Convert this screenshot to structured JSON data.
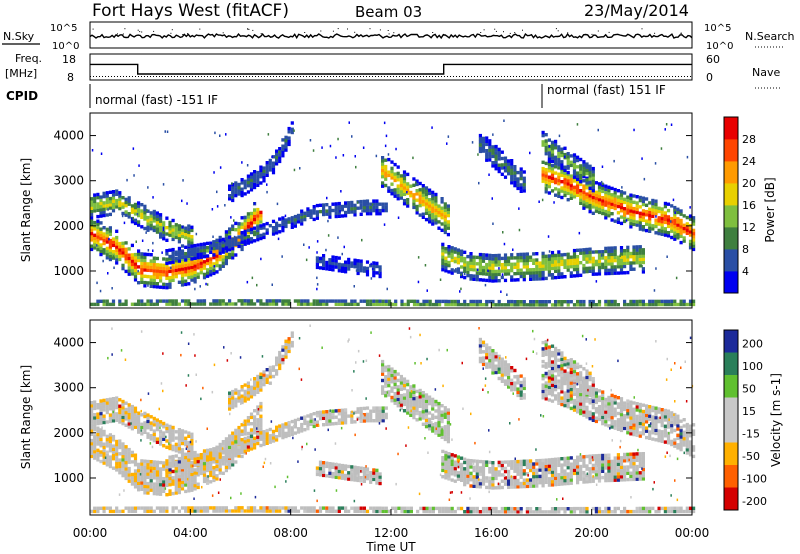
{
  "header": {
    "station": "Fort Hays West (fitACF)",
    "beam": "Beam 03",
    "date": "23/May/2014"
  },
  "noise_panel": {
    "left_label": "N.Sky",
    "left_ticks": [
      "10^5",
      "10^0"
    ],
    "right_ticks": [
      "10^5",
      "10^0"
    ],
    "right_label": "N.Search"
  },
  "freq_panel": {
    "left_label_1": "Freq.",
    "left_label_2": "[MHz]",
    "left_ticks": [
      "18",
      "8"
    ],
    "right_ticks": [
      "60",
      "0"
    ],
    "right_label": "Nave",
    "freq_steps": [
      {
        "from": 0.0,
        "to": 1.9,
        "mhz": 14
      },
      {
        "from": 1.9,
        "to": 14.1,
        "mhz": 10.3
      },
      {
        "from": 14.1,
        "to": 24.0,
        "mhz": 14
      }
    ],
    "nave_level": 8
  },
  "cpid": {
    "label": "CPID",
    "segments": [
      {
        "text": "normal (fast) -151 IF",
        "from_hour": 0
      },
      {
        "text": "normal (fast) 151 IF",
        "from_hour": 18
      }
    ]
  },
  "colors": {
    "power": [
      "#0000f0",
      "#2a4fa5",
      "#3f7f3f",
      "#7fbf3f",
      "#e8d000",
      "#ff9a00",
      "#ff4500",
      "#e80000"
    ],
    "velocity": [
      "#d40000",
      "#ff6000",
      "#ffb000",
      "#c8c8c8",
      "#c8c8c8",
      "#60c030",
      "#2a7f5a",
      "#1c2a9a"
    ],
    "gs": "#bebebe"
  },
  "chart_data": [
    {
      "type": "heatmap",
      "name": "power",
      "ylabel": "Slant Range [km]",
      "yticks": [
        "4000",
        "3000",
        "2000",
        "1000"
      ],
      "ylim": [
        180,
        4500
      ],
      "xlim": [
        0,
        24
      ],
      "colorbar": {
        "label": "Power [dB]",
        "ticks": [
          "28",
          "24",
          "20",
          "16",
          "12",
          "8",
          "4"
        ],
        "range": [
          0,
          32
        ]
      },
      "echo_bands": [
        {
          "x": [
            0.0,
            1.0,
            2.0,
            3.0,
            4.0,
            5.0,
            6.0,
            6.8
          ],
          "y": [
            1800,
            1500,
            1000,
            950,
            1050,
            1300,
            1800,
            2300
          ],
          "width": 350,
          "peak": 28
        },
        {
          "x": [
            0.0,
            1.0,
            2.0,
            3.0,
            4.0
          ],
          "y": [
            2400,
            2500,
            2200,
            1900,
            1700
          ],
          "width": 250,
          "peak": 18
        },
        {
          "x": [
            3.0,
            5.0,
            7.0,
            9.0,
            11.0,
            11.8
          ],
          "y": [
            1300,
            1500,
            1900,
            2300,
            2400,
            2400
          ],
          "width": 160,
          "peak": 8
        },
        {
          "x": [
            11.6,
            12.5,
            13.5,
            14.3
          ],
          "y": [
            3200,
            2800,
            2400,
            2100
          ],
          "width": 350,
          "peak": 22
        },
        {
          "x": [
            14.0,
            15.0,
            16.0,
            18.0,
            20.0,
            22.0
          ],
          "y": [
            1300,
            1100,
            1050,
            1100,
            1200,
            1250
          ],
          "width": 300,
          "peak": 18
        },
        {
          "x": [
            18.0,
            19.0,
            20.0,
            21.5,
            23.0,
            24.0
          ],
          "y": [
            3100,
            2900,
            2600,
            2300,
            2100,
            1800
          ],
          "width": 350,
          "peak": 28
        },
        {
          "x": [
            15.5,
            16.5,
            17.3
          ],
          "y": [
            3800,
            3300,
            2900
          ],
          "width": 250,
          "peak": 10
        },
        {
          "x": [
            18.0,
            19.0,
            20.0
          ],
          "y": [
            3800,
            3400,
            3000
          ],
          "width": 250,
          "peak": 14
        },
        {
          "x": [
            5.5,
            6.2,
            7.2,
            8.0
          ],
          "y": [
            2700,
            2900,
            3300,
            4100
          ],
          "width": 200,
          "peak": 8
        },
        {
          "x": [
            9.0,
            10.2,
            11.5
          ],
          "y": [
            1200,
            1100,
            1000
          ],
          "width": 150,
          "peak": 6
        },
        {
          "x": [
            0.0,
            6.0,
            12.0,
            18.0,
            24.0
          ],
          "y": [
            250,
            260,
            250,
            240,
            250
          ],
          "width": 90,
          "peak": 14
        }
      ]
    },
    {
      "type": "heatmap",
      "name": "velocity",
      "ylabel": "Slant Range [km]",
      "xlabel": "Time UT",
      "xticks": [
        "00:00",
        "04:00",
        "08:00",
        "12:00",
        "16:00",
        "20:00",
        "00:00"
      ],
      "yticks": [
        "4000",
        "3000",
        "2000",
        "1000"
      ],
      "ylim": [
        180,
        4500
      ],
      "xlim": [
        0,
        24
      ],
      "colorbar": {
        "label": "Velocity [m s-1]",
        "ticks": [
          "200",
          "100",
          "50",
          "15",
          "-15",
          "-50",
          "-100",
          "-200"
        ],
        "range": [
          -250,
          250
        ]
      }
    }
  ]
}
